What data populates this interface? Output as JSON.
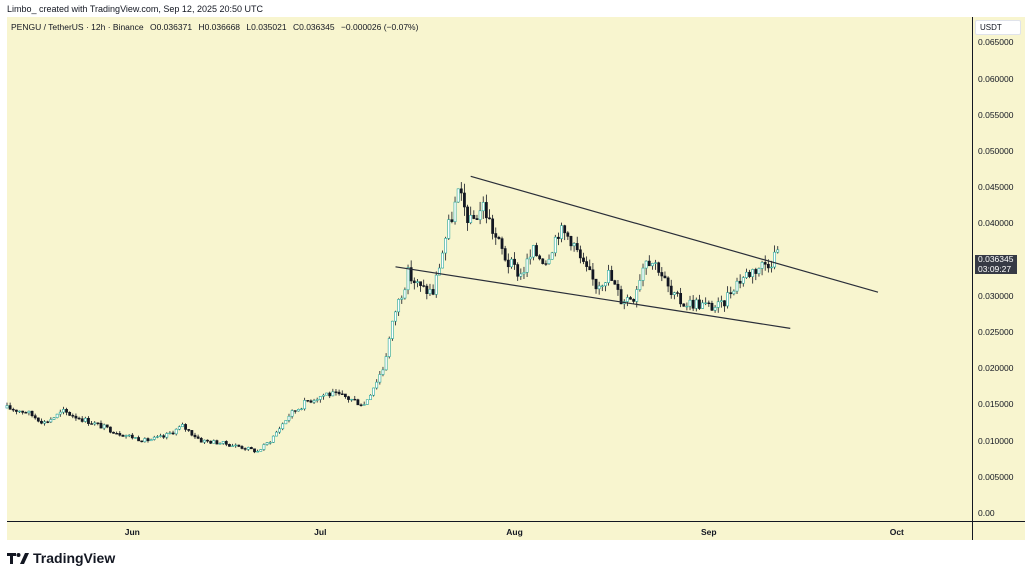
{
  "attribution": "Limbo_ created with TradingView.com, Sep 12, 2025 20:50 UTC",
  "legend": {
    "symbol": "PENGU / TetherUS · 12h · Binance",
    "open": "O0.036371",
    "high": "H0.036668",
    "low": "L0.035021",
    "close": "C0.036345",
    "change": "−0.000026 (−0.07%)"
  },
  "currency": "USDT",
  "last_price": {
    "price": "0.036345",
    "countdown": "03:09:27"
  },
  "brand": "TradingView",
  "colors": {
    "background": "#f8f5cf",
    "up_candle": "#26a69a",
    "down_candle": "#131722",
    "trendline": "#2a2e39"
  },
  "chart_data": {
    "type": "candlestick",
    "symbol": "PENGU/USDT",
    "interval": "12h",
    "y_axis": {
      "ticks": [
        "0.065000",
        "0.060000",
        "0.055000",
        "0.050000",
        "0.045000",
        "0.040000",
        "0.035000",
        "0.030000",
        "0.025000",
        "0.020000",
        "0.015000",
        "0.010000",
        "0.005000",
        "0.00"
      ],
      "ylim": [
        0,
        0.0685
      ]
    },
    "x_axis": {
      "ticks": [
        "Jun",
        "Jul",
        "Aug",
        "Sep",
        "Oct"
      ],
      "range": [
        "2025-05-12",
        "2025-10-13"
      ]
    },
    "close_series": {
      "dates": [
        "2025-05-12",
        "2025-05-15",
        "2025-05-18",
        "2025-05-21",
        "2025-05-24",
        "2025-05-27",
        "2025-05-30",
        "2025-06-03",
        "2025-06-06",
        "2025-06-09",
        "2025-06-12",
        "2025-06-15",
        "2025-06-18",
        "2025-06-21",
        "2025-06-23",
        "2025-06-26",
        "2025-06-29",
        "2025-07-02",
        "2025-07-05",
        "2025-07-08",
        "2025-07-11",
        "2025-07-13",
        "2025-07-15",
        "2025-07-17",
        "2025-07-19",
        "2025-07-21",
        "2025-07-23",
        "2025-07-25",
        "2025-07-27",
        "2025-07-29",
        "2025-07-31",
        "2025-08-02",
        "2025-08-04",
        "2025-08-06",
        "2025-08-08",
        "2025-08-10",
        "2025-08-12",
        "2025-08-14",
        "2025-08-16",
        "2025-08-18",
        "2025-08-20",
        "2025-08-22",
        "2025-08-24",
        "2025-08-26",
        "2025-08-28",
        "2025-08-30",
        "2025-09-01",
        "2025-09-03",
        "2025-09-05",
        "2025-09-07",
        "2025-09-09",
        "2025-09-11",
        "2025-09-12"
      ],
      "close": [
        0.0145,
        0.014,
        0.0125,
        0.014,
        0.013,
        0.012,
        0.011,
        0.01,
        0.0105,
        0.012,
        0.01,
        0.0097,
        0.0092,
        0.0085,
        0.01,
        0.0135,
        0.0155,
        0.0165,
        0.016,
        0.015,
        0.02,
        0.028,
        0.033,
        0.031,
        0.0305,
        0.038,
        0.044,
        0.04,
        0.0425,
        0.038,
        0.0345,
        0.033,
        0.036,
        0.035,
        0.039,
        0.038,
        0.034,
        0.0315,
        0.033,
        0.0295,
        0.03,
        0.0355,
        0.034,
        0.03,
        0.029,
        0.029,
        0.0285,
        0.0285,
        0.0315,
        0.033,
        0.034,
        0.035,
        0.0363
      ]
    },
    "trendlines": [
      {
        "name": "upper",
        "from": [
          "2025-07-25",
          0.0465
        ],
        "to": [
          "2025-09-28",
          0.0305
        ]
      },
      {
        "name": "lower",
        "from": [
          "2025-07-13",
          0.034
        ],
        "to": [
          "2025-09-14",
          0.0255
        ]
      }
    ],
    "pattern": "falling wedge",
    "last_close": 0.036345
  }
}
